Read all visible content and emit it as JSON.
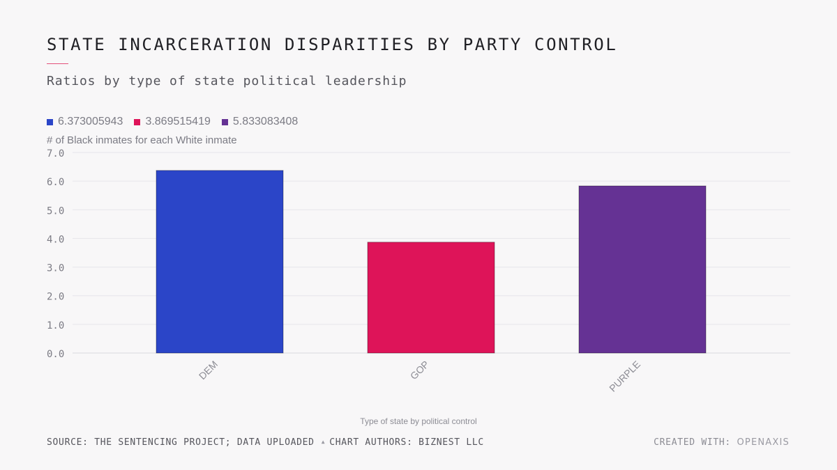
{
  "title": "STATE INCARCERATION DISPARITIES BY PARTY CONTROL",
  "subtitle": "Ratios by type of state political leadership",
  "legend": [
    {
      "label": "6.373005943",
      "color": "#2b45c8"
    },
    {
      "label": "3.869515419",
      "color": "#de1459"
    },
    {
      "label": "5.833083408",
      "color": "#653294"
    }
  ],
  "footer": {
    "source": "SOURCE: THE SENTENCING PROJECT; DATA UPLOADED",
    "authors": "CHART AUTHORS: BIZNEST LLC",
    "created_prefix": "CREATED WITH:",
    "created_brand": "OPENAXIS"
  },
  "chart_data": {
    "type": "bar",
    "categories": [
      "DEM",
      "GOP",
      "PURPLE"
    ],
    "values": [
      6.373005943,
      3.869515419,
      5.833083408
    ],
    "colors": [
      "#2b45c8",
      "#de1459",
      "#653294"
    ],
    "ylabel": "# of Black inmates for each White inmate",
    "xlabel": "Type of state by political control",
    "ylim": [
      0,
      7
    ],
    "yticks": [
      "0.0",
      "1.0",
      "2.0",
      "3.0",
      "4.0",
      "5.0",
      "6.0",
      "7.0"
    ],
    "grid": true
  }
}
